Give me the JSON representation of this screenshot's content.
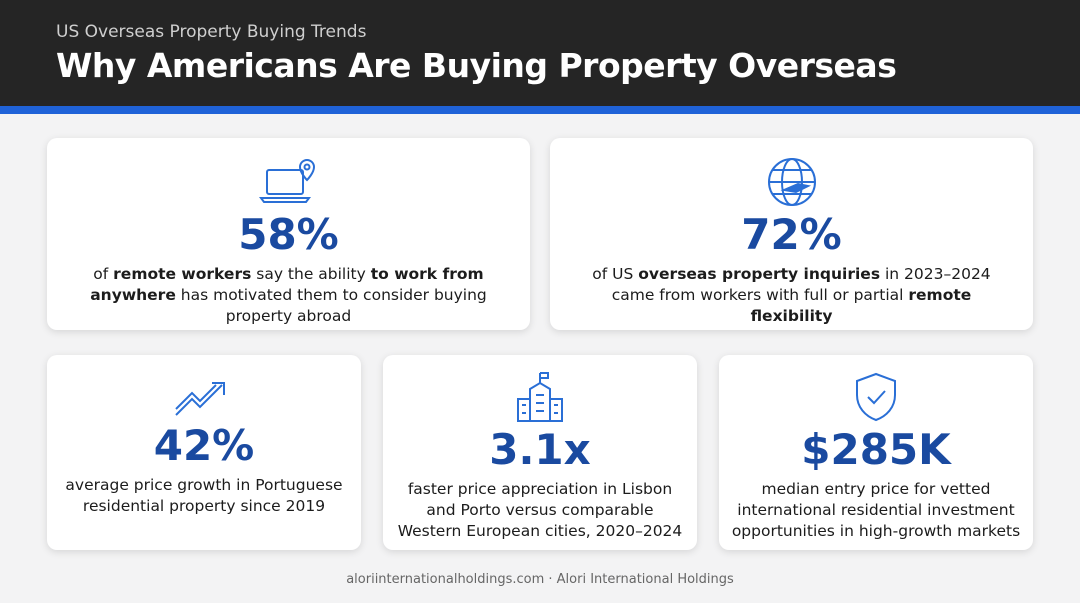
{
  "header": {
    "subtitle": "US Overseas Property Buying Trends",
    "title": "Why Americans Are Buying Property Overseas"
  },
  "cards": [
    {
      "stat": "58%",
      "description": [
        {
          "text": "of ",
          "bold": false
        },
        {
          "text": "remote workers",
          "bold": true
        },
        {
          "text": " say the ability ",
          "bold": false
        },
        {
          "text": "to work from anywhere",
          "bold": true
        },
        {
          "text": " has motivated them to consider buying property abroad",
          "bold": false
        }
      ]
    },
    {
      "stat": "72%",
      "description": [
        {
          "text": "of US ",
          "bold": false
        },
        {
          "text": "overseas property inquiries",
          "bold": true
        },
        {
          "text": " in 2023–2024 came from workers with full or partial ",
          "bold": false
        },
        {
          "text": "remote flexibility",
          "bold": true
        }
      ]
    },
    {
      "stat": "42%",
      "description": [
        {
          "text": "average price growth in Portuguese residential property since 2019",
          "bold": false
        }
      ]
    },
    {
      "stat": "3.1x",
      "description": [
        {
          "text": "faster price appreciation in Lisbon and Porto versus comparable Western European cities, 2020–2024",
          "bold": false
        }
      ]
    },
    {
      "stat": "$285K",
      "description": [
        {
          "text": "median entry price for vetted international residential investment opportunities in high-growth markets",
          "bold": false
        }
      ]
    }
  ],
  "footer": "aloriinternationalholdings.com · Alori International Holdings"
}
